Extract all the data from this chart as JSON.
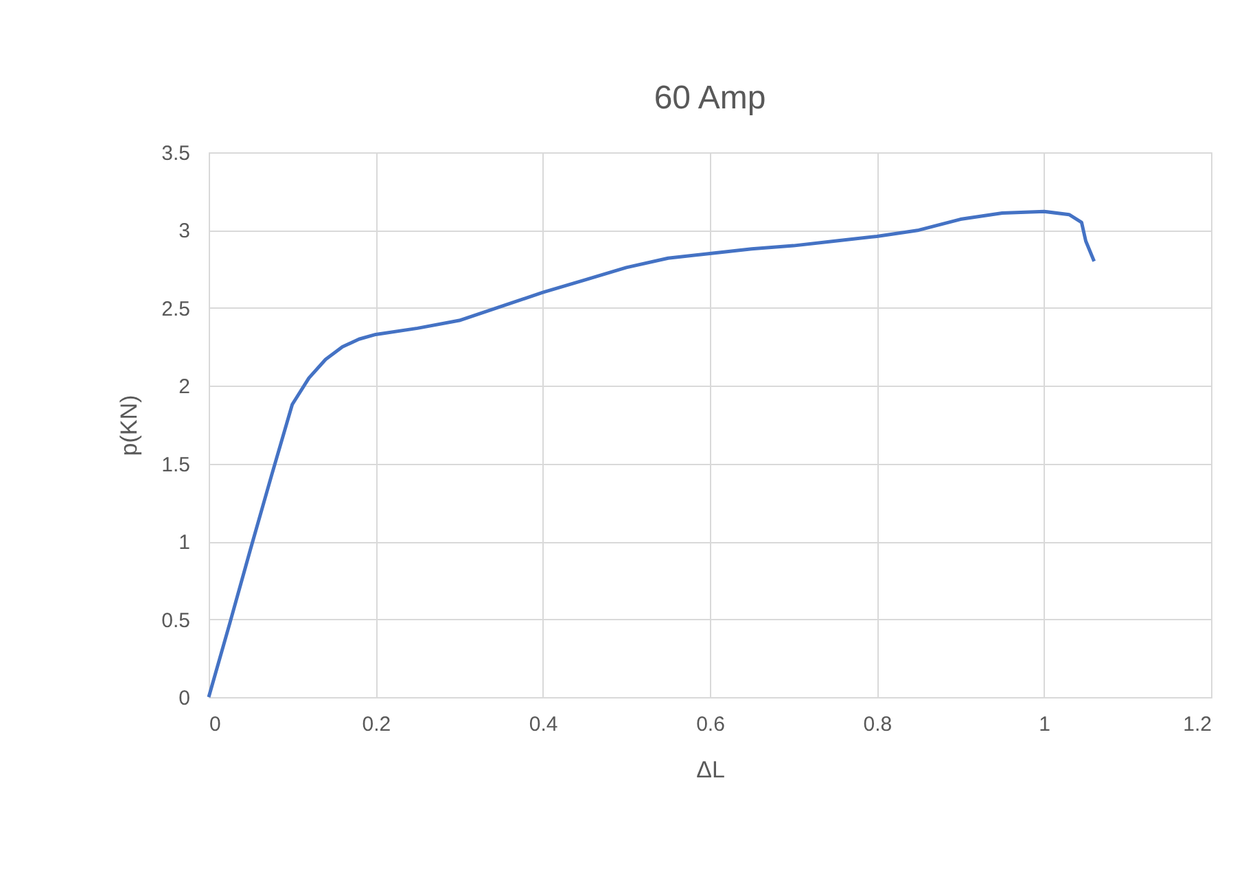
{
  "chart_data": {
    "type": "line",
    "title": "60 Amp",
    "xlabel": "ΔL",
    "ylabel": "p(KN)",
    "x": [
      0,
      0.025,
      0.05,
      0.075,
      0.1,
      0.12,
      0.14,
      0.16,
      0.18,
      0.2,
      0.25,
      0.3,
      0.35,
      0.4,
      0.45,
      0.5,
      0.55,
      0.6,
      0.65,
      0.7,
      0.75,
      0.8,
      0.85,
      0.9,
      0.95,
      1.0,
      1.03,
      1.045,
      1.05,
      1.06
    ],
    "series": [
      {
        "color": "#4472c4",
        "values": [
          0,
          0.47,
          0.95,
          1.42,
          1.88,
          2.05,
          2.17,
          2.25,
          2.3,
          2.33,
          2.37,
          2.42,
          2.51,
          2.6,
          2.68,
          2.76,
          2.82,
          2.85,
          2.88,
          2.9,
          2.93,
          2.96,
          3.0,
          3.07,
          3.11,
          3.12,
          3.1,
          3.05,
          2.93,
          2.8
        ]
      }
    ],
    "xlim": [
      0,
      1.2
    ],
    "xticks": [
      0,
      0.2,
      0.4,
      0.6,
      0.8,
      1,
      1.2
    ],
    "ylim": [
      0,
      3.5
    ],
    "yticks": [
      0,
      0.5,
      1,
      1.5,
      2,
      2.5,
      3,
      3.5
    ],
    "grid": true,
    "marker": "none",
    "line_style": "solid"
  }
}
